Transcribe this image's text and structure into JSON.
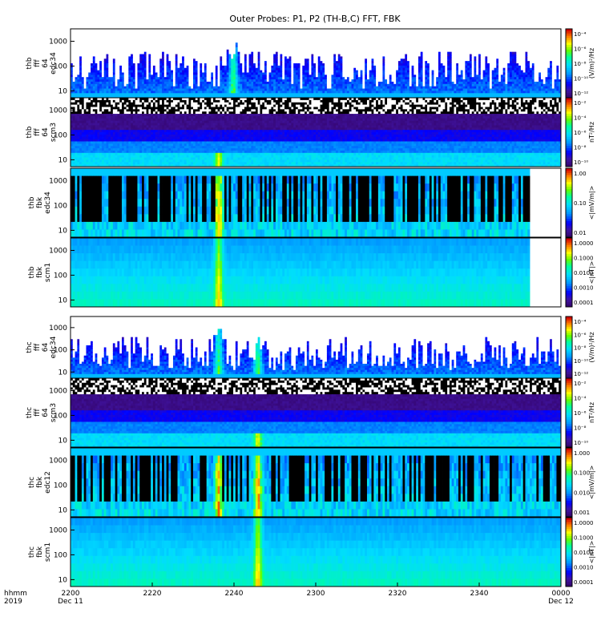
{
  "chart_data": {
    "type": "heatmap",
    "title": "Outer Probes: P1, P2 (TH-B,C) FFT, FBK",
    "time_axis": {
      "label_lines": [
        "hhmm",
        "2019"
      ],
      "ticks": [
        {
          "value": "2200",
          "date": "Dec 11"
        },
        {
          "value": "2220",
          "date": ""
        },
        {
          "value": "2240",
          "date": ""
        },
        {
          "value": "2300",
          "date": ""
        },
        {
          "value": "2320",
          "date": ""
        },
        {
          "value": "2340",
          "date": ""
        },
        {
          "value": "0000",
          "date": "Dec 12"
        }
      ]
    },
    "panels": [
      {
        "label_lines": [
          "thb",
          "fff",
          "64",
          "edc34"
        ],
        "kind": "fff-e",
        "y_ticks": [
          "1000",
          "100",
          "10"
        ],
        "colorbar_label": "(V/m)²/Hz",
        "colorbar_ticks": [
          "10⁻⁴",
          "10⁻⁶",
          "10⁻⁸",
          "10⁻¹⁰",
          "10⁻¹²"
        ],
        "data_end": 1.0,
        "burst_centers": [
          0.33
        ]
      },
      {
        "label_lines": [
          "thb",
          "fff",
          "64",
          "scm3"
        ],
        "kind": "fff-b",
        "y_ticks": [
          "1000",
          "100",
          "10"
        ],
        "colorbar_label": "nT²/Hz",
        "colorbar_ticks": [
          "10⁻²",
          "10⁻⁴",
          "10⁻⁶",
          "10⁻⁸",
          "10⁻¹⁰"
        ],
        "data_end": 1.0,
        "burst_centers": [
          0.3
        ]
      },
      {
        "label_lines": [
          "thb",
          "fbk",
          "edc34"
        ],
        "kind": "fbk-e",
        "y_ticks": [
          "1000",
          "100",
          "10"
        ],
        "colorbar_label": "<|mV/m|>",
        "colorbar_ticks": [
          "1.00",
          "0.10",
          "0.01"
        ],
        "data_end": 0.935,
        "burst_centers": [
          0.3
        ]
      },
      {
        "label_lines": [
          "thb",
          "fbk",
          "scm1"
        ],
        "kind": "fbk-b",
        "y_ticks": [
          "1000",
          "100",
          "10"
        ],
        "colorbar_label": "<|nT|>",
        "colorbar_ticks": [
          "1.0000",
          "0.1000",
          "0.0100",
          "0.0010",
          "0.0001"
        ],
        "data_end": 0.935,
        "burst_centers": [
          0.3
        ]
      },
      {
        "label_lines": [
          "thc",
          "fff",
          "64",
          "edc34"
        ],
        "kind": "fff-e",
        "y_ticks": [
          "1000",
          "100",
          "10"
        ],
        "colorbar_label": "(V/m)²/Hz",
        "colorbar_ticks": [
          "10⁻⁴",
          "10⁻⁶",
          "10⁻⁸",
          "10⁻¹⁰",
          "10⁻¹²"
        ],
        "data_end": 1.0,
        "burst_centers": [
          0.3,
          0.38
        ]
      },
      {
        "label_lines": [
          "thc",
          "fff",
          "64",
          "scm3"
        ],
        "kind": "fff-b",
        "y_ticks": [
          "1000",
          "100",
          "10"
        ],
        "colorbar_label": "nT²/Hz",
        "colorbar_ticks": [
          "10⁻²",
          "10⁻⁴",
          "10⁻⁶",
          "10⁻⁸",
          "10⁻¹⁰"
        ],
        "data_end": 1.0,
        "burst_centers": [
          0.38
        ]
      },
      {
        "label_lines": [
          "thc",
          "fbk",
          "edc12"
        ],
        "kind": "fbk-e",
        "y_ticks": [
          "1000",
          "100",
          "10"
        ],
        "colorbar_label": "<|mV/m|>",
        "colorbar_ticks": [
          "1.000",
          "0.100",
          "0.010",
          "0.001"
        ],
        "data_end": 1.0,
        "burst_centers": [
          0.3,
          0.38
        ]
      },
      {
        "label_lines": [
          "thc",
          "fbk",
          "scm1"
        ],
        "kind": "fbk-b",
        "y_ticks": [
          "1000",
          "100",
          "10"
        ],
        "colorbar_label": "<|nT|>",
        "colorbar_ticks": [
          "1.0000",
          "0.1000",
          "0.0100",
          "0.0010",
          "0.0001"
        ],
        "data_end": 1.0,
        "burst_centers": [
          0.38
        ]
      }
    ]
  }
}
